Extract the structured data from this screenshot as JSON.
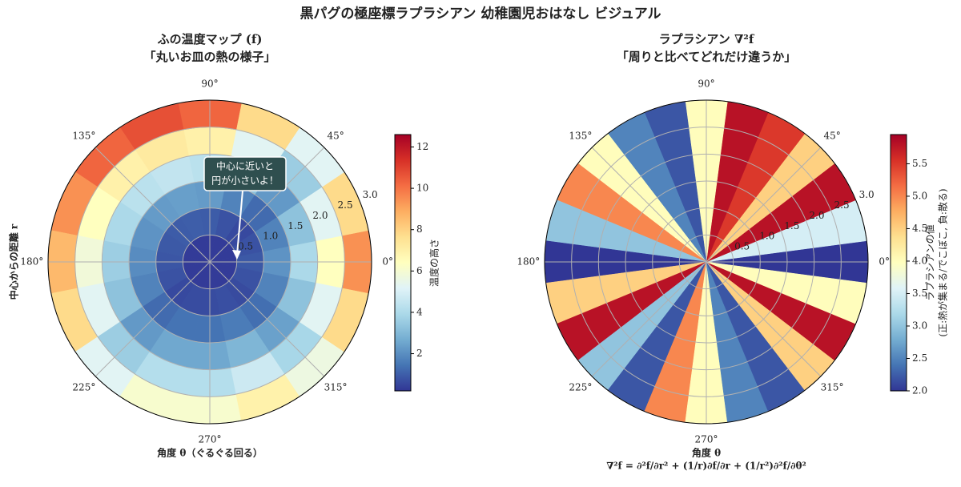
{
  "title": "黒パグの極座標ラプラシアン 幼稚園児おはなし ビジュアル",
  "chart_data": [
    {
      "type": "polar_heatmap",
      "title": [
        "ふの温度マップ (f)",
        "「丸いお皿の熱の様子」"
      ],
      "theta": [
        0,
        22.5,
        45,
        67.5,
        90,
        112.5,
        135,
        157.5,
        180,
        202.5,
        225,
        247.5,
        270,
        292.5,
        315,
        337.5
      ],
      "r": [
        0.25,
        0.75,
        1.25,
        1.75,
        2.25,
        2.75
      ],
      "values": [
        [
          0.3,
          0.3,
          0.3,
          0.3,
          0.3,
          0.3,
          0.3,
          0.3,
          0.3,
          0.3,
          0.3,
          0.3,
          0.3,
          0.3,
          0.3,
          0.3
        ],
        [
          0.89,
          0.76,
          0.58,
          0.76,
          0.95,
          0.98,
          0.95,
          0.89,
          0.83,
          0.76,
          0.58,
          0.64,
          0.64,
          0.7,
          0.61,
          0.76
        ],
        [
          2.11,
          1.76,
          1.24,
          1.76,
          2.28,
          2.37,
          2.28,
          2.11,
          1.94,
          1.76,
          1.24,
          1.42,
          1.42,
          1.59,
          1.33,
          1.76
        ],
        [
          3.94,
          3.26,
          2.24,
          3.26,
          4.28,
          4.45,
          4.28,
          3.94,
          3.6,
          3.26,
          2.24,
          2.58,
          2.58,
          2.92,
          2.41,
          3.26
        ],
        [
          6.39,
          5.26,
          3.58,
          5.26,
          6.95,
          7.23,
          6.95,
          6.39,
          5.83,
          5.26,
          3.58,
          4.14,
          4.14,
          4.7,
          3.86,
          5.26
        ],
        [
          9.44,
          7.76,
          5.24,
          7.76,
          10.28,
          10.7,
          10.28,
          9.44,
          8.6,
          7.76,
          5.24,
          6.08,
          6.08,
          6.92,
          5.66,
          7.76
        ]
      ],
      "rlim": [
        0,
        3
      ],
      "rticks": [
        0.5,
        {
          "value": 1,
          "label": "1.0"
        },
        1.5,
        {
          "value": 2,
          "label": "2.0"
        },
        2.5,
        {
          "value": 3,
          "label": "3.0"
        }
      ],
      "thetaticks": [
        {
          "value": 0,
          "label": "0°"
        },
        {
          "value": 45,
          "label": "45°"
        },
        {
          "value": 90,
          "label": "90°"
        },
        {
          "value": 135,
          "label": "135°"
        },
        {
          "value": 180,
          "label": "180°"
        },
        {
          "value": 225,
          "label": "225°"
        },
        {
          "value": 270,
          "label": "270°"
        },
        {
          "value": 315,
          "label": "315°"
        }
      ],
      "clim": [
        0.2,
        12.6
      ],
      "cticks": [
        2,
        4,
        6,
        8,
        10,
        12
      ],
      "colorbar_label": [
        "温度の高さ"
      ],
      "xlabel": [
        "角度 θ（ぐるぐる回る）"
      ],
      "ylabel": "中心からの距離 r",
      "annotation": [
        "中心に近いと",
        "円が小さいよ！"
      ],
      "colormap": "RdYlBu_r",
      "grid": true
    },
    {
      "type": "polar_angular_heatmap",
      "title": [
        "ラプラシアン ∇²f",
        "「周りと比べてどれだけ違うか」"
      ],
      "theta": [
        0,
        15,
        30,
        45,
        60,
        75,
        90,
        105,
        120,
        135,
        150,
        165,
        180,
        195,
        210,
        225,
        240,
        255,
        270,
        285,
        300,
        315,
        330,
        345
      ],
      "values": [
        2.0,
        3.5,
        5.8,
        4.5,
        5.5,
        5.8,
        4.0,
        2.2,
        2.5,
        4.0,
        5.0,
        3.0,
        2.0,
        4.5,
        5.8,
        3.0,
        2.2,
        5.0,
        4.0,
        2.5,
        2.2,
        4.5,
        5.8,
        4.0
      ],
      "rlim": [
        0,
        3
      ],
      "rticks": [
        0.5,
        {
          "value": 1,
          "label": "1.0"
        },
        1.5,
        {
          "value": 2,
          "label": "2.0"
        },
        2.5,
        {
          "value": 3,
          "label": "3.0"
        }
      ],
      "thetaticks": [
        {
          "value": 0,
          "label": "0°"
        },
        {
          "value": 45,
          "label": "45°"
        },
        {
          "value": 90,
          "label": "90°"
        },
        {
          "value": 135,
          "label": "135°"
        },
        {
          "value": 180,
          "label": "180°"
        },
        {
          "value": 225,
          "label": "225°"
        },
        {
          "value": 270,
          "label": "270°"
        },
        {
          "value": 315,
          "label": "315°"
        }
      ],
      "clim": [
        2.0,
        5.95
      ],
      "cticks": [
        {
          "value": 2,
          "label": "2.0"
        },
        2.5,
        {
          "value": 3,
          "label": "3.0"
        },
        3.5,
        {
          "value": 4,
          "label": "4.0"
        },
        4.5,
        {
          "value": 5,
          "label": "5.0"
        },
        5.5
      ],
      "colorbar_label": [
        "ラプラシアンの値",
        "(正:熱が集まる/でこぼこ, 負:散る)"
      ],
      "xlabel": [
        "角度 θ",
        "∇²f = ∂²f/∂r² + (1/r)∂f/∂r + (1/r²)∂²f/∂θ²"
      ],
      "colormap": "RdYlBu_r",
      "grid": true
    }
  ]
}
